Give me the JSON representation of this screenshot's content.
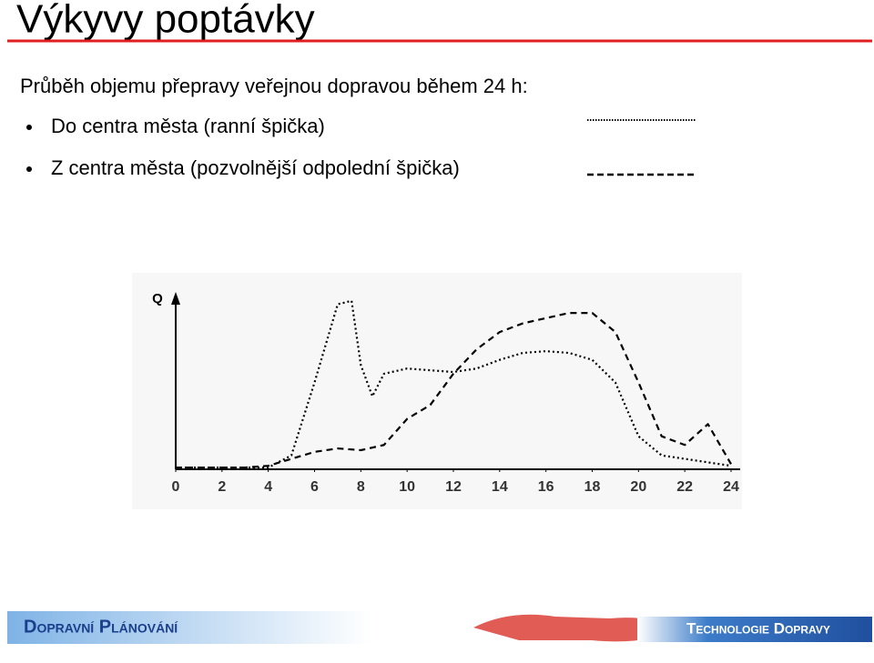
{
  "header": {
    "title": "Výkyvy poptávky"
  },
  "intro": "Průběh objemu přepravy veřejnou dopravou během 24 h:",
  "chart_data": {
    "type": "line",
    "y_label": "Q",
    "xlim": [
      0,
      24
    ],
    "xticks": [
      0,
      2,
      4,
      6,
      8,
      10,
      12,
      14,
      16,
      18,
      20,
      22,
      24
    ],
    "ylim": [
      0,
      100
    ],
    "series": [
      {
        "name": "Do centra města (ranní špička)",
        "color": "#000000",
        "dash": "dotted",
        "x": [
          0,
          4,
          5,
          6,
          7,
          7.6,
          8,
          8.5,
          9,
          10,
          12,
          13,
          14,
          15,
          16,
          17,
          18,
          19,
          20,
          21,
          22,
          23,
          24
        ],
        "values": [
          1,
          1,
          8,
          50,
          95,
          97,
          60,
          42,
          55,
          58,
          56,
          58,
          63,
          67,
          68,
          67,
          63,
          50,
          19,
          8,
          6,
          4,
          2
        ]
      },
      {
        "name": "Z centra města (pozvolnější odpolední špička)",
        "color": "#000000",
        "dash": "dashed",
        "x": [
          0,
          3,
          4,
          5,
          6,
          7,
          8,
          9,
          10,
          11,
          12,
          13,
          14,
          15,
          16,
          17,
          18,
          19,
          20,
          21,
          22,
          23,
          24
        ],
        "values": [
          1,
          1,
          2,
          6,
          10,
          12,
          11,
          14,
          29,
          37,
          55,
          69,
          79,
          84,
          87,
          90,
          90,
          79,
          50,
          19,
          14,
          26,
          3
        ]
      }
    ]
  },
  "footer": {
    "left": "Dopravní Plánování",
    "right": "Technologie Dopravy"
  }
}
